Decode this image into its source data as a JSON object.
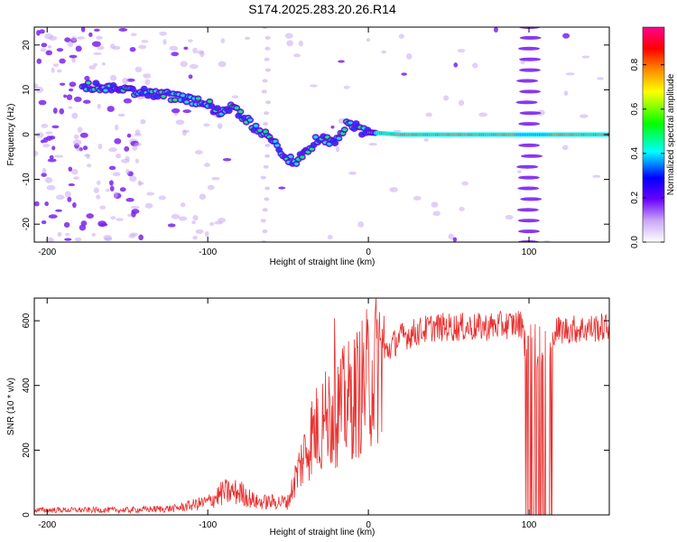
{
  "title": "S174.2025.283.20.26.R14",
  "chart_data": [
    {
      "type": "heatmap",
      "xlabel": "Height of straight line (km)",
      "ylabel": "Frequency (Hz)",
      "xlim": [
        -208,
        150
      ],
      "ylim": [
        -24,
        24
      ],
      "xticks": [
        -200,
        -100,
        0,
        100
      ],
      "yticks": [
        -20,
        -10,
        0,
        10,
        20
      ],
      "grid": false,
      "trace": [
        {
          "x": -178,
          "y": 11
        },
        {
          "x": -140,
          "y": 9.5
        },
        {
          "x": -128,
          "y": 9
        },
        {
          "x": -115,
          "y": 8
        },
        {
          "x": -100,
          "y": 7
        },
        {
          "x": -95,
          "y": 5
        },
        {
          "x": -85,
          "y": 6
        },
        {
          "x": -78,
          "y": 4
        },
        {
          "x": -72,
          "y": 2
        },
        {
          "x": -65,
          "y": 0
        },
        {
          "x": -58,
          "y": -1
        },
        {
          "x": -52,
          "y": -5
        },
        {
          "x": -45,
          "y": -6
        },
        {
          "x": -40,
          "y": -4.5
        },
        {
          "x": -32,
          "y": -1
        },
        {
          "x": -20,
          "y": -1.5
        },
        {
          "x": -12,
          "y": 3
        },
        {
          "x": -5,
          "y": 1
        },
        {
          "x": 0,
          "y": 0.5
        },
        {
          "x": 20,
          "y": 0
        },
        {
          "x": 60,
          "y": 0
        },
        {
          "x": 90,
          "y": 0
        },
        {
          "x": 112,
          "y": 0
        },
        {
          "x": 150,
          "y": 0
        }
      ],
      "stripe_x": [
        -64,
        100
      ],
      "colorbar": {
        "label": "Normalized spectral amplitude",
        "ticks": [
          0.0,
          0.2,
          0.4,
          0.6,
          0.8
        ],
        "tick_labels": [
          "0.0",
          "0.2",
          "0.4",
          "0.6",
          "0.8"
        ],
        "range": [
          0,
          0.97
        ],
        "colors": [
          "#ffffff",
          "#7b2cf0",
          "#0000ff",
          "#00ffff",
          "#00ff00",
          "#ffff00",
          "#ff8c00",
          "#ff0000",
          "#ff0080"
        ]
      }
    },
    {
      "type": "line",
      "xlabel": "Height of straight line (km)",
      "ylabel": "SNR (10 * v/v)",
      "xlim": [
        -208,
        150
      ],
      "ylim": [
        0,
        670
      ],
      "xticks": [
        -200,
        -100,
        0,
        100
      ],
      "yticks": [
        0,
        200,
        400,
        600
      ],
      "color": "#e8312f",
      "envelope": [
        {
          "x": -208,
          "y": 15
        },
        {
          "x": -150,
          "y": 15
        },
        {
          "x": -120,
          "y": 20
        },
        {
          "x": -100,
          "y": 40
        },
        {
          "x": -90,
          "y": 70
        },
        {
          "x": -80,
          "y": 70
        },
        {
          "x": -70,
          "y": 40
        },
        {
          "x": -50,
          "y": 40
        },
        {
          "x": -45,
          "y": 120
        },
        {
          "x": -35,
          "y": 250
        },
        {
          "x": -25,
          "y": 300
        },
        {
          "x": -10,
          "y": 360
        },
        {
          "x": 0,
          "y": 420
        },
        {
          "x": 10,
          "y": 500
        },
        {
          "x": 20,
          "y": 550
        },
        {
          "x": 40,
          "y": 580
        },
        {
          "x": 70,
          "y": 580
        },
        {
          "x": 92,
          "y": 590
        },
        {
          "x": 97,
          "y": 590
        },
        {
          "x": 115,
          "y": 570
        },
        {
          "x": 150,
          "y": 580
        }
      ],
      "dropout": [
        97,
        115
      ]
    }
  ]
}
